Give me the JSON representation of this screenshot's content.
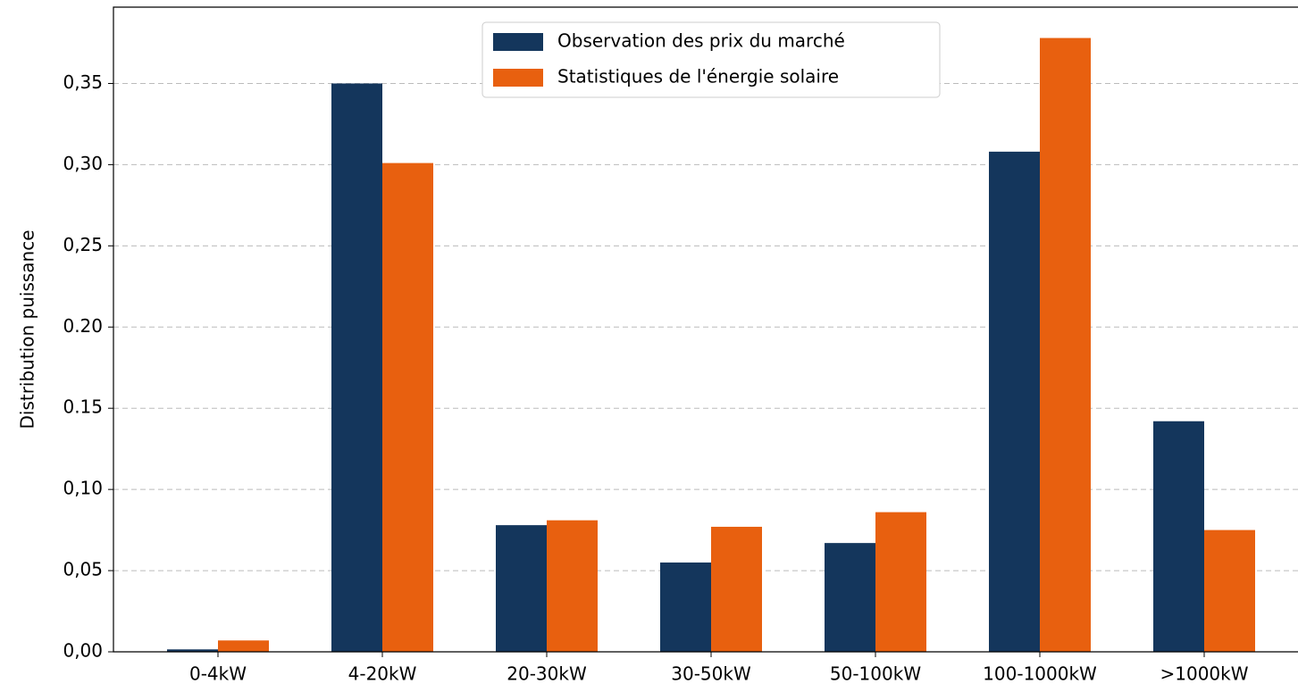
{
  "chart_data": {
    "type": "bar",
    "ylabel": "Distribution puissance",
    "categories": [
      "0-4kW",
      "4-20kW",
      "20-30kW",
      "30-50kW",
      "50-100kW",
      "100-1000kW",
      ">1000kW"
    ],
    "series": [
      {
        "name": "Observation des prix du marché",
        "color": "#14365c",
        "values": [
          0.0015,
          0.35,
          0.078,
          0.055,
          0.067,
          0.308,
          0.142
        ]
      },
      {
        "name": "Statistiques de l'énergie solaire",
        "color": "#e8600f",
        "values": [
          0.007,
          0.301,
          0.081,
          0.077,
          0.086,
          0.378,
          0.075
        ]
      }
    ],
    "ylim": [
      0,
      0.397
    ],
    "yticks": [
      {
        "value": 0,
        "label": "0,00"
      },
      {
        "value": 0.05,
        "label": "0,05"
      },
      {
        "value": 0.1,
        "label": "0,10"
      },
      {
        "value": 0.15,
        "label": "0.15"
      },
      {
        "value": 0.2,
        "label": "0.20"
      },
      {
        "value": 0.25,
        "label": "0,25"
      },
      {
        "value": 0.3,
        "label": "0,30"
      },
      {
        "value": 0.35,
        "label": "0,35"
      }
    ],
    "grid": true,
    "legend": "upper center"
  }
}
